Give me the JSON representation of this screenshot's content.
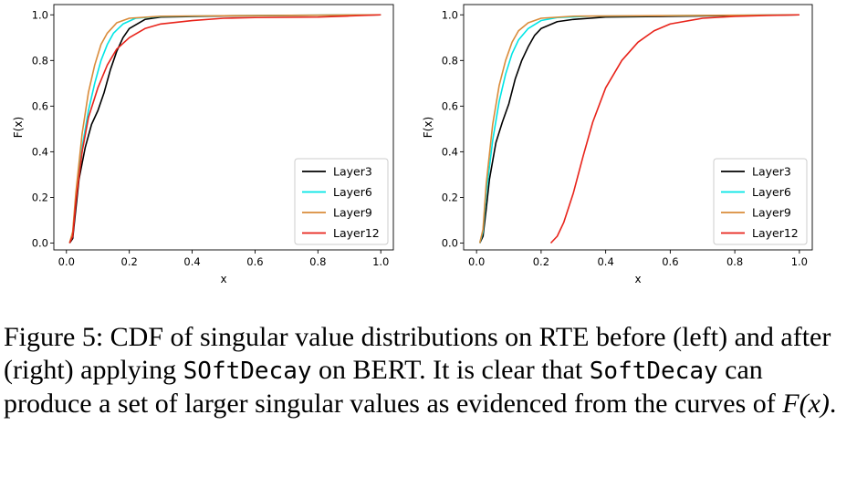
{
  "chart_data": [
    {
      "type": "line",
      "panel": "left",
      "xlabel": "x",
      "ylabel": "F(x)",
      "xlim": [
        -0.04,
        1.04
      ],
      "ylim": [
        -0.03,
        1.045
      ],
      "xticks": [
        "0.0",
        "0.2",
        "0.4",
        "0.6",
        "0.8",
        "1.0"
      ],
      "yticks": [
        "0.0",
        "0.2",
        "0.4",
        "0.6",
        "0.8",
        "1.0"
      ],
      "grid": false,
      "legend_position": "lower-right",
      "series": [
        {
          "name": "Layer3",
          "color": "#000000",
          "points": [
            [
              0.01,
              0
            ],
            [
              0.02,
              0.02
            ],
            [
              0.03,
              0.15
            ],
            [
              0.04,
              0.28
            ],
            [
              0.06,
              0.42
            ],
            [
              0.08,
              0.52
            ],
            [
              0.1,
              0.58
            ],
            [
              0.12,
              0.66
            ],
            [
              0.14,
              0.76
            ],
            [
              0.16,
              0.84
            ],
            [
              0.18,
              0.9
            ],
            [
              0.2,
              0.94
            ],
            [
              0.25,
              0.98
            ],
            [
              0.3,
              0.99
            ],
            [
              0.5,
              0.995
            ],
            [
              0.7,
              0.997
            ],
            [
              1.0,
              1.0
            ]
          ]
        },
        {
          "name": "Layer6",
          "color": "#00e5e5",
          "points": [
            [
              0.01,
              0
            ],
            [
              0.02,
              0.04
            ],
            [
              0.03,
              0.2
            ],
            [
              0.05,
              0.42
            ],
            [
              0.07,
              0.58
            ],
            [
              0.09,
              0.7
            ],
            [
              0.11,
              0.8
            ],
            [
              0.13,
              0.87
            ],
            [
              0.15,
              0.92
            ],
            [
              0.18,
              0.96
            ],
            [
              0.22,
              0.985
            ],
            [
              0.3,
              0.993
            ],
            [
              0.5,
              0.996
            ],
            [
              1.0,
              1.0
            ]
          ]
        },
        {
          "name": "Layer9",
          "color": "#d98b3a",
          "points": [
            [
              0.01,
              0
            ],
            [
              0.02,
              0.05
            ],
            [
              0.03,
              0.22
            ],
            [
              0.05,
              0.48
            ],
            [
              0.07,
              0.66
            ],
            [
              0.09,
              0.78
            ],
            [
              0.11,
              0.87
            ],
            [
              0.13,
              0.92
            ],
            [
              0.16,
              0.965
            ],
            [
              0.2,
              0.985
            ],
            [
              0.3,
              0.994
            ],
            [
              0.5,
              0.996
            ],
            [
              1.0,
              1.0
            ]
          ]
        },
        {
          "name": "Layer12",
          "color": "#e8231a",
          "points": [
            [
              0.01,
              0
            ],
            [
              0.02,
              0.03
            ],
            [
              0.03,
              0.18
            ],
            [
              0.05,
              0.4
            ],
            [
              0.07,
              0.55
            ],
            [
              0.1,
              0.68
            ],
            [
              0.13,
              0.78
            ],
            [
              0.16,
              0.85
            ],
            [
              0.2,
              0.9
            ],
            [
              0.25,
              0.94
            ],
            [
              0.3,
              0.96
            ],
            [
              0.4,
              0.975
            ],
            [
              0.5,
              0.985
            ],
            [
              0.6,
              0.988
            ],
            [
              0.8,
              0.99
            ],
            [
              0.9,
              0.995
            ],
            [
              1.0,
              1.0
            ]
          ]
        }
      ]
    },
    {
      "type": "line",
      "panel": "right",
      "xlabel": "x",
      "ylabel": "F(x)",
      "xlim": [
        -0.04,
        1.04
      ],
      "ylim": [
        -0.03,
        1.045
      ],
      "xticks": [
        "0.0",
        "0.2",
        "0.4",
        "0.6",
        "0.8",
        "1.0"
      ],
      "yticks": [
        "0.0",
        "0.2",
        "0.4",
        "0.6",
        "0.8",
        "1.0"
      ],
      "grid": false,
      "legend_position": "lower-right",
      "series": [
        {
          "name": "Layer3",
          "color": "#000000",
          "points": [
            [
              0.01,
              0
            ],
            [
              0.02,
              0.03
            ],
            [
              0.03,
              0.15
            ],
            [
              0.04,
              0.28
            ],
            [
              0.06,
              0.44
            ],
            [
              0.08,
              0.53
            ],
            [
              0.1,
              0.61
            ],
            [
              0.12,
              0.72
            ],
            [
              0.14,
              0.8
            ],
            [
              0.16,
              0.86
            ],
            [
              0.18,
              0.91
            ],
            [
              0.2,
              0.94
            ],
            [
              0.25,
              0.97
            ],
            [
              0.3,
              0.98
            ],
            [
              0.4,
              0.99
            ],
            [
              1.0,
              1.0
            ]
          ]
        },
        {
          "name": "Layer6",
          "color": "#00e5e5",
          "points": [
            [
              0.01,
              0
            ],
            [
              0.02,
              0.05
            ],
            [
              0.03,
              0.22
            ],
            [
              0.05,
              0.45
            ],
            [
              0.07,
              0.62
            ],
            [
              0.09,
              0.74
            ],
            [
              0.11,
              0.83
            ],
            [
              0.13,
              0.89
            ],
            [
              0.16,
              0.94
            ],
            [
              0.2,
              0.975
            ],
            [
              0.25,
              0.988
            ],
            [
              0.35,
              0.994
            ],
            [
              1.0,
              1.0
            ]
          ]
        },
        {
          "name": "Layer9",
          "color": "#d98b3a",
          "points": [
            [
              0.01,
              0
            ],
            [
              0.02,
              0.06
            ],
            [
              0.03,
              0.26
            ],
            [
              0.05,
              0.52
            ],
            [
              0.07,
              0.69
            ],
            [
              0.09,
              0.8
            ],
            [
              0.11,
              0.88
            ],
            [
              0.13,
              0.93
            ],
            [
              0.16,
              0.965
            ],
            [
              0.2,
              0.985
            ],
            [
              0.3,
              0.994
            ],
            [
              1.0,
              1.0
            ]
          ]
        },
        {
          "name": "Layer12",
          "color": "#e8231a",
          "points": [
            [
              0.23,
              0
            ],
            [
              0.25,
              0.03
            ],
            [
              0.27,
              0.09
            ],
            [
              0.3,
              0.22
            ],
            [
              0.33,
              0.38
            ],
            [
              0.36,
              0.53
            ],
            [
              0.4,
              0.68
            ],
            [
              0.45,
              0.8
            ],
            [
              0.5,
              0.88
            ],
            [
              0.55,
              0.93
            ],
            [
              0.6,
              0.96
            ],
            [
              0.7,
              0.985
            ],
            [
              0.8,
              0.993
            ],
            [
              0.9,
              0.997
            ],
            [
              1.0,
              1.0
            ]
          ]
        }
      ]
    }
  ],
  "caption": {
    "p1": "Figure 5: CDF of singular value distributions on RTE before (left) and after (right) applying ",
    "m1": "SOftDecay",
    "p2": " on BERT. It is clear that ",
    "m2": "SoftDecay",
    "p3": " can produce a set of larger singular values as evidenced from the curves of ",
    "math": "F(x)",
    "p4": "."
  }
}
